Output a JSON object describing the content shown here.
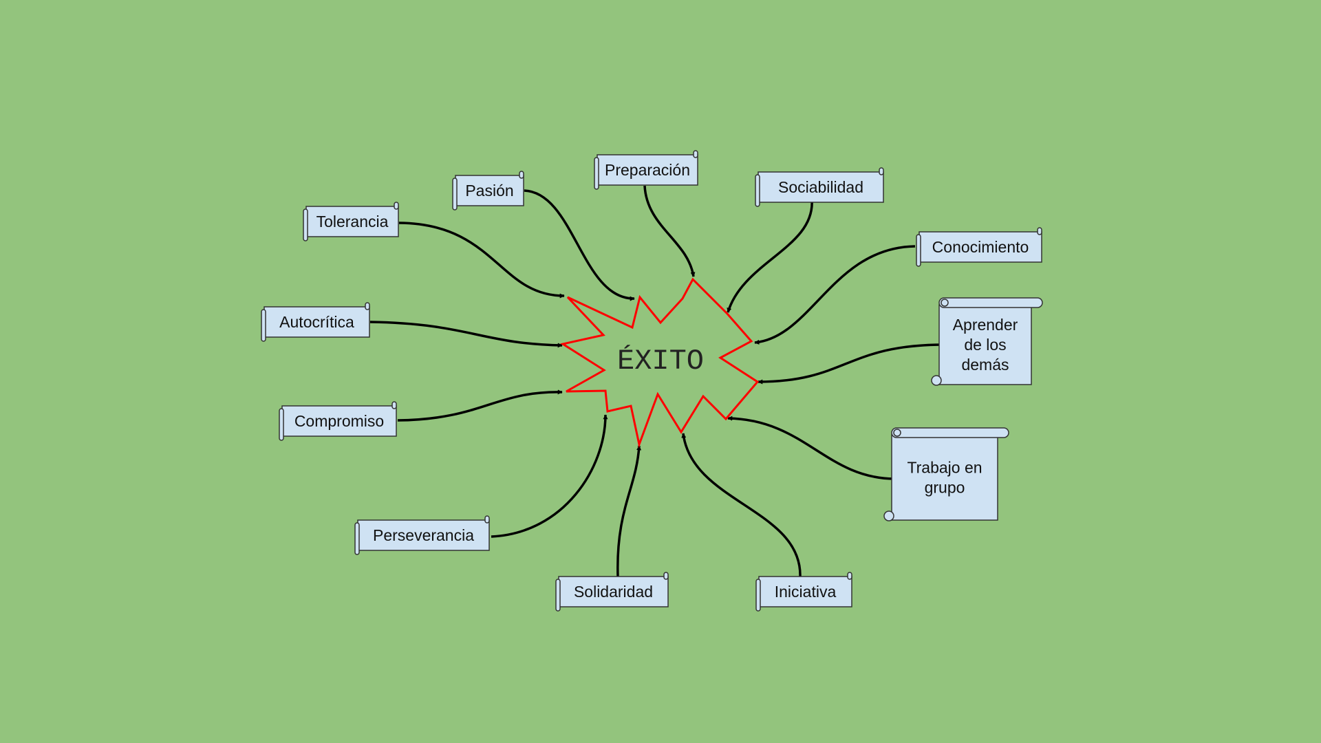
{
  "colors": {
    "background": "#93c47d",
    "node_fill": "#cfe2f3",
    "node_stroke": "#333333",
    "star_stroke": "#ff0000",
    "arrow": "#000000"
  },
  "center": {
    "label": "ÉXITO",
    "shape": "explosion-star"
  },
  "nodes": [
    {
      "id": "pasion",
      "label": "Pasión",
      "shape": "horizontal-scroll"
    },
    {
      "id": "preparacion",
      "label": "Preparación",
      "shape": "horizontal-scroll"
    },
    {
      "id": "sociabilidad",
      "label": "Sociabilidad",
      "shape": "horizontal-scroll"
    },
    {
      "id": "tolerancia",
      "label": "Tolerancia",
      "shape": "horizontal-scroll"
    },
    {
      "id": "conocimiento",
      "label": "Conocimiento",
      "shape": "horizontal-scroll"
    },
    {
      "id": "autocritica",
      "label": "Autocrítica",
      "shape": "horizontal-scroll"
    },
    {
      "id": "aprender",
      "label": "Aprender de los demás",
      "lines": [
        "Aprender",
        "de los",
        "demás"
      ],
      "shape": "vertical-scroll"
    },
    {
      "id": "compromiso",
      "label": "Compromiso",
      "shape": "horizontal-scroll"
    },
    {
      "id": "trabajo",
      "label": "Trabajo en grupo",
      "lines": [
        "Trabajo en",
        "grupo"
      ],
      "shape": "vertical-scroll"
    },
    {
      "id": "perseverancia",
      "label": "Perseverancia",
      "shape": "horizontal-scroll"
    },
    {
      "id": "solidaridad",
      "label": "Solidaridad",
      "shape": "horizontal-scroll"
    },
    {
      "id": "iniciativa",
      "label": "Iniciativa",
      "shape": "horizontal-scroll"
    }
  ],
  "edges": [
    {
      "from": "pasion",
      "to": "center"
    },
    {
      "from": "preparacion",
      "to": "center"
    },
    {
      "from": "sociabilidad",
      "to": "center"
    },
    {
      "from": "tolerancia",
      "to": "center"
    },
    {
      "from": "conocimiento",
      "to": "center"
    },
    {
      "from": "autocritica",
      "to": "center"
    },
    {
      "from": "aprender",
      "to": "center"
    },
    {
      "from": "compromiso",
      "to": "center"
    },
    {
      "from": "trabajo",
      "to": "center"
    },
    {
      "from": "perseverancia",
      "to": "center"
    },
    {
      "from": "solidaridad",
      "to": "center"
    },
    {
      "from": "iniciativa",
      "to": "center"
    }
  ]
}
